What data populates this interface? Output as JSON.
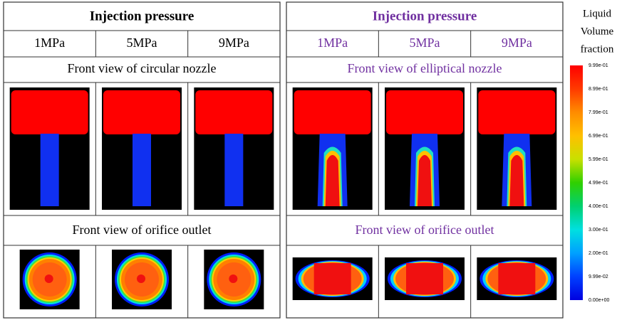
{
  "left_panel": {
    "title": "Injection pressure",
    "columns": [
      "1MPa",
      "5MPa",
      "9MPa"
    ],
    "rows": [
      "Front view of circular nozzle",
      "Front view of orifice outlet"
    ]
  },
  "right_panel": {
    "title": "Injection pressure",
    "columns": [
      "1MPa",
      "5MPa",
      "9MPa"
    ],
    "rows": [
      "Front view of elliptical nozzle",
      "Front view of orifice outlet"
    ]
  },
  "legend": {
    "title_lines": [
      "Liquid",
      "Volume",
      "fraction"
    ],
    "labels": [
      "9.99e-01",
      "8.99e-01",
      "7.99e-01",
      "6.99e-01",
      "5.99e-01",
      "4.99e-01",
      "4.00e-01",
      "3.00e-01",
      "2.00e-01",
      "9.99e-02",
      "0.00e+00"
    ]
  }
}
